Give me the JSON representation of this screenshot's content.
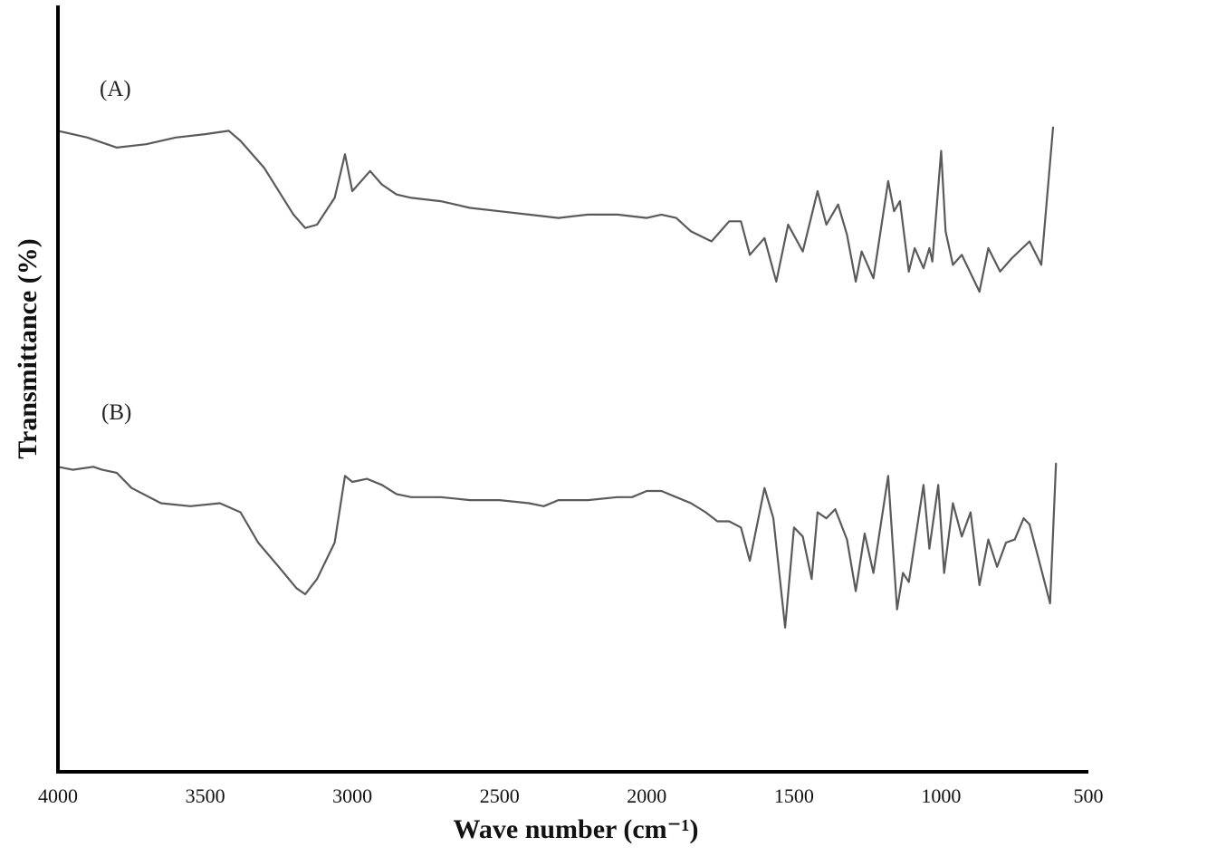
{
  "chart_data": {
    "type": "line",
    "title": "",
    "xlabel": "Wave number (cm⁻¹)",
    "ylabel": "Transmittance (%)",
    "xlim": [
      4000,
      500
    ],
    "x_reversed": true,
    "x_ticks": [
      "4000",
      "3500",
      "3000",
      "2500",
      "2000",
      "1500",
      "1000",
      "500"
    ],
    "y_ticks": [],
    "grid": false,
    "legend": "none",
    "ylim": [
      0,
      100
    ],
    "series": [
      {
        "name": "(A)",
        "color": "#5a5a5a",
        "points": [
          [
            4000,
            88
          ],
          [
            3900,
            86
          ],
          [
            3800,
            83
          ],
          [
            3700,
            84
          ],
          [
            3600,
            86
          ],
          [
            3500,
            87
          ],
          [
            3420,
            88
          ],
          [
            3380,
            85
          ],
          [
            3300,
            77
          ],
          [
            3200,
            63
          ],
          [
            3160,
            59
          ],
          [
            3120,
            60
          ],
          [
            3060,
            68
          ],
          [
            3025,
            81
          ],
          [
            3000,
            70
          ],
          [
            2940,
            76
          ],
          [
            2900,
            72
          ],
          [
            2850,
            69
          ],
          [
            2800,
            68
          ],
          [
            2700,
            67
          ],
          [
            2600,
            65
          ],
          [
            2500,
            64
          ],
          [
            2400,
            63
          ],
          [
            2300,
            62
          ],
          [
            2200,
            63
          ],
          [
            2100,
            63
          ],
          [
            2000,
            62
          ],
          [
            1950,
            63
          ],
          [
            1900,
            62
          ],
          [
            1850,
            58
          ],
          [
            1780,
            55
          ],
          [
            1720,
            61
          ],
          [
            1680,
            61
          ],
          [
            1650,
            51
          ],
          [
            1600,
            56
          ],
          [
            1560,
            43
          ],
          [
            1520,
            60
          ],
          [
            1470,
            52
          ],
          [
            1420,
            70
          ],
          [
            1390,
            60
          ],
          [
            1350,
            66
          ],
          [
            1320,
            57
          ],
          [
            1290,
            43
          ],
          [
            1270,
            52
          ],
          [
            1230,
            44
          ],
          [
            1180,
            73
          ],
          [
            1160,
            64
          ],
          [
            1140,
            67
          ],
          [
            1110,
            46
          ],
          [
            1090,
            53
          ],
          [
            1060,
            47
          ],
          [
            1040,
            53
          ],
          [
            1030,
            49
          ],
          [
            1000,
            82
          ],
          [
            985,
            58
          ],
          [
            960,
            48
          ],
          [
            930,
            51
          ],
          [
            870,
            40
          ],
          [
            840,
            53
          ],
          [
            800,
            46
          ],
          [
            760,
            50
          ],
          [
            700,
            55
          ],
          [
            660,
            48
          ],
          [
            620,
            89
          ]
        ]
      },
      {
        "name": "(B)",
        "color": "#5a5a5a",
        "points": [
          [
            4000,
            85
          ],
          [
            3950,
            84
          ],
          [
            3880,
            85
          ],
          [
            3850,
            84
          ],
          [
            3800,
            83
          ],
          [
            3750,
            78
          ],
          [
            3650,
            73
          ],
          [
            3550,
            72
          ],
          [
            3450,
            73
          ],
          [
            3380,
            70
          ],
          [
            3320,
            60
          ],
          [
            3250,
            52
          ],
          [
            3190,
            45
          ],
          [
            3160,
            43
          ],
          [
            3120,
            48
          ],
          [
            3060,
            60
          ],
          [
            3025,
            82
          ],
          [
            3000,
            80
          ],
          [
            2950,
            81
          ],
          [
            2900,
            79
          ],
          [
            2850,
            76
          ],
          [
            2800,
            75
          ],
          [
            2700,
            75
          ],
          [
            2600,
            74
          ],
          [
            2500,
            74
          ],
          [
            2400,
            73
          ],
          [
            2350,
            72
          ],
          [
            2300,
            74
          ],
          [
            2200,
            74
          ],
          [
            2100,
            75
          ],
          [
            2050,
            75
          ],
          [
            2000,
            77
          ],
          [
            1950,
            77
          ],
          [
            1900,
            75
          ],
          [
            1850,
            73
          ],
          [
            1800,
            70
          ],
          [
            1760,
            67
          ],
          [
            1720,
            67
          ],
          [
            1680,
            65
          ],
          [
            1650,
            54
          ],
          [
            1600,
            78
          ],
          [
            1570,
            68
          ],
          [
            1530,
            32
          ],
          [
            1500,
            65
          ],
          [
            1470,
            62
          ],
          [
            1440,
            48
          ],
          [
            1420,
            70
          ],
          [
            1390,
            68
          ],
          [
            1360,
            71
          ],
          [
            1320,
            61
          ],
          [
            1290,
            44
          ],
          [
            1260,
            63
          ],
          [
            1230,
            50
          ],
          [
            1180,
            82
          ],
          [
            1150,
            38
          ],
          [
            1130,
            50
          ],
          [
            1110,
            47
          ],
          [
            1060,
            79
          ],
          [
            1040,
            58
          ],
          [
            1010,
            79
          ],
          [
            990,
            50
          ],
          [
            960,
            73
          ],
          [
            930,
            62
          ],
          [
            900,
            70
          ],
          [
            870,
            46
          ],
          [
            840,
            61
          ],
          [
            810,
            52
          ],
          [
            780,
            60
          ],
          [
            750,
            61
          ],
          [
            720,
            68
          ],
          [
            700,
            66
          ],
          [
            670,
            55
          ],
          [
            630,
            40
          ],
          [
            610,
            86
          ]
        ]
      }
    ]
  }
}
